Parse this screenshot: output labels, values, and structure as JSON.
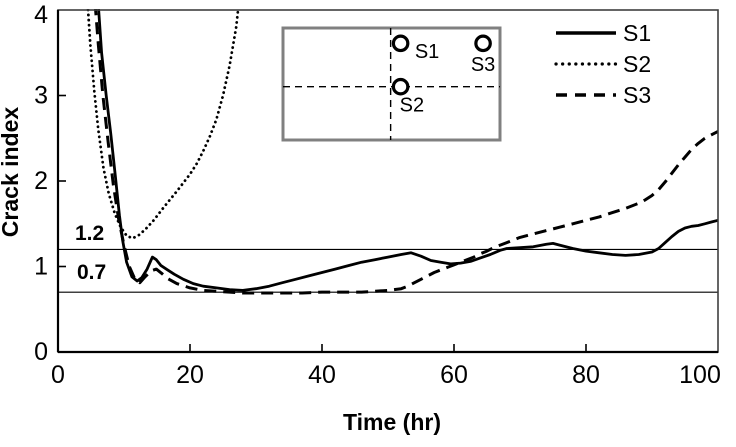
{
  "figure": {
    "background": "#ffffff"
  },
  "colors": {
    "line": "#000000",
    "frame": "#3f3f3f",
    "axis": "#000000",
    "ref_line": "#000000",
    "inset_border": "#808080"
  },
  "legend": {
    "items": [
      {
        "label": "S1",
        "style": "solid"
      },
      {
        "label": "S2",
        "style": "dotted"
      },
      {
        "label": "S3",
        "style": "dashed"
      }
    ]
  },
  "inset": {
    "description": "specimen plan view with sensor locations and dashed centerlines",
    "sensors": [
      {
        "name": "S1",
        "fx": 0.542,
        "fy": 0.137,
        "label_fx": 0.664,
        "label_fy": 0.214
      },
      {
        "name": "S2",
        "fx": 0.542,
        "fy": 0.524,
        "label_fx": 0.594,
        "label_fy": 0.69
      },
      {
        "name": "S3",
        "fx": 0.922,
        "fy": 0.137,
        "label_fx": 0.922,
        "label_fy": 0.33
      }
    ]
  },
  "chart_data": {
    "type": "line",
    "title": "",
    "xlabel": "Time (hr)",
    "ylabel": "Crack index",
    "xlim": [
      0,
      100
    ],
    "ylim": [
      0,
      4
    ],
    "x_ticks": [
      0,
      20,
      40,
      60,
      80,
      100
    ],
    "y_ticks": [
      0,
      1,
      2,
      3,
      4
    ],
    "grid": "off",
    "legend_position": "top-right-inside",
    "reference_lines": [
      {
        "y": 1.2,
        "label": "1.2"
      },
      {
        "y": 0.7,
        "label": "0.7"
      }
    ],
    "series": [
      {
        "name": "S1",
        "style": "solid",
        "points": [
          [
            5.9,
            4.3
          ],
          [
            6.6,
            3.5
          ],
          [
            7.3,
            3.0
          ],
          [
            8.0,
            2.55
          ],
          [
            8.7,
            2.05
          ],
          [
            9.3,
            1.6
          ],
          [
            9.8,
            1.3
          ],
          [
            10.4,
            1.05
          ],
          [
            11.2,
            0.88
          ],
          [
            12.0,
            0.83
          ],
          [
            12.7,
            0.87
          ],
          [
            13.5,
            0.97
          ],
          [
            14.3,
            1.11
          ],
          [
            14.9,
            1.08
          ],
          [
            15.6,
            1.01
          ],
          [
            16.6,
            0.96
          ],
          [
            17.6,
            0.91
          ],
          [
            19,
            0.85
          ],
          [
            20.5,
            0.8
          ],
          [
            22,
            0.77
          ],
          [
            24,
            0.75
          ],
          [
            26,
            0.73
          ],
          [
            28,
            0.72
          ],
          [
            30,
            0.74
          ],
          [
            32,
            0.77
          ],
          [
            34,
            0.81
          ],
          [
            36,
            0.85
          ],
          [
            38,
            0.89
          ],
          [
            40,
            0.93
          ],
          [
            42,
            0.97
          ],
          [
            44,
            1.01
          ],
          [
            46,
            1.05
          ],
          [
            48,
            1.08
          ],
          [
            50,
            1.11
          ],
          [
            52,
            1.14
          ],
          [
            53.5,
            1.16
          ],
          [
            55,
            1.12
          ],
          [
            56.5,
            1.07
          ],
          [
            58,
            1.05
          ],
          [
            59.5,
            1.03
          ],
          [
            61,
            1.04
          ],
          [
            62.5,
            1.06
          ],
          [
            64,
            1.1
          ],
          [
            65.5,
            1.14
          ],
          [
            67,
            1.19
          ],
          [
            68,
            1.21
          ],
          [
            70,
            1.22
          ],
          [
            72,
            1.23
          ],
          [
            74,
            1.26
          ],
          [
            75,
            1.27
          ],
          [
            76,
            1.25
          ],
          [
            78,
            1.21
          ],
          [
            80,
            1.18
          ],
          [
            82,
            1.16
          ],
          [
            84,
            1.14
          ],
          [
            86,
            1.13
          ],
          [
            88,
            1.14
          ],
          [
            90,
            1.17
          ],
          [
            91,
            1.21
          ],
          [
            92,
            1.28
          ],
          [
            93,
            1.35
          ],
          [
            94,
            1.41
          ],
          [
            95,
            1.45
          ],
          [
            96,
            1.47
          ],
          [
            97,
            1.48
          ],
          [
            98,
            1.5
          ],
          [
            99,
            1.52
          ],
          [
            100,
            1.54
          ]
        ]
      },
      {
        "name": "S2",
        "style": "dotted",
        "points": [
          [
            4.3,
            4.3
          ],
          [
            4.9,
            3.6
          ],
          [
            5.5,
            3.05
          ],
          [
            6.1,
            2.6
          ],
          [
            6.9,
            2.15
          ],
          [
            7.7,
            1.85
          ],
          [
            8.6,
            1.62
          ],
          [
            9.5,
            1.46
          ],
          [
            10.4,
            1.36
          ],
          [
            11.3,
            1.33
          ],
          [
            12.3,
            1.37
          ],
          [
            13.3,
            1.44
          ],
          [
            14.5,
            1.54
          ],
          [
            16,
            1.69
          ],
          [
            18,
            1.88
          ],
          [
            20,
            2.08
          ],
          [
            21,
            2.2
          ],
          [
            22,
            2.35
          ],
          [
            23,
            2.52
          ],
          [
            24,
            2.72
          ],
          [
            25,
            3.0
          ],
          [
            26,
            3.35
          ],
          [
            27,
            3.8
          ],
          [
            27.7,
            4.3
          ]
        ]
      },
      {
        "name": "S3",
        "style": "dashed",
        "points": [
          [
            5.4,
            4.3
          ],
          [
            6.1,
            3.6
          ],
          [
            6.8,
            3.0
          ],
          [
            7.6,
            2.45
          ],
          [
            8.4,
            1.95
          ],
          [
            9.2,
            1.55
          ],
          [
            10,
            1.25
          ],
          [
            10.8,
            1.0
          ],
          [
            11.6,
            0.86
          ],
          [
            12.4,
            0.81
          ],
          [
            13.2,
            0.88
          ],
          [
            14.1,
            0.95
          ],
          [
            14.9,
            0.97
          ],
          [
            15.7,
            0.92
          ],
          [
            16.6,
            0.86
          ],
          [
            18,
            0.8
          ],
          [
            20,
            0.75
          ],
          [
            22,
            0.72
          ],
          [
            24,
            0.71
          ],
          [
            26,
            0.7
          ],
          [
            28,
            0.69
          ],
          [
            31,
            0.69
          ],
          [
            34,
            0.69
          ],
          [
            37,
            0.69
          ],
          [
            40,
            0.7
          ],
          [
            43,
            0.7
          ],
          [
            46,
            0.7
          ],
          [
            48,
            0.71
          ],
          [
            50,
            0.72
          ],
          [
            52,
            0.74
          ],
          [
            53,
            0.77
          ],
          [
            54,
            0.81
          ],
          [
            55,
            0.85
          ],
          [
            56,
            0.89
          ],
          [
            57,
            0.93
          ],
          [
            58,
            0.96
          ],
          [
            59,
            0.99
          ],
          [
            60,
            1.02
          ],
          [
            61,
            1.05
          ],
          [
            62,
            1.08
          ],
          [
            63,
            1.11
          ],
          [
            64,
            1.15
          ],
          [
            65,
            1.18
          ],
          [
            66,
            1.22
          ],
          [
            67,
            1.25
          ],
          [
            68,
            1.28
          ],
          [
            69,
            1.31
          ],
          [
            70,
            1.34
          ],
          [
            72,
            1.38
          ],
          [
            74,
            1.42
          ],
          [
            76,
            1.46
          ],
          [
            78,
            1.5
          ],
          [
            80,
            1.54
          ],
          [
            82,
            1.58
          ],
          [
            84,
            1.63
          ],
          [
            86,
            1.68
          ],
          [
            88,
            1.74
          ],
          [
            89,
            1.78
          ],
          [
            90,
            1.83
          ],
          [
            91,
            1.9
          ],
          [
            92,
            1.99
          ],
          [
            93,
            2.09
          ],
          [
            94,
            2.19
          ],
          [
            95,
            2.28
          ],
          [
            96,
            2.37
          ],
          [
            97,
            2.44
          ],
          [
            98,
            2.5
          ],
          [
            99,
            2.54
          ],
          [
            100,
            2.58
          ]
        ]
      }
    ]
  }
}
